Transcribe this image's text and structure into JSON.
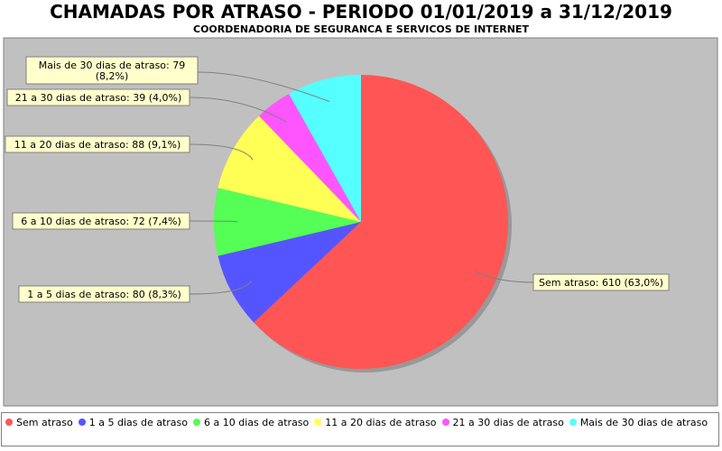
{
  "chart_data": {
    "type": "pie",
    "title": "CHAMADAS POR ATRASO - PERIODO 01/01/2019 a 31/12/2019",
    "subtitle": "COORDENADORIA DE SEGURANCA E SERVICOS DE INTERNET",
    "slices": [
      {
        "name": "Sem atraso",
        "value": 610,
        "label": "Sem atraso: 610 (63,0%)",
        "color": "#ff5555"
      },
      {
        "name": "1 a 5 dias de atraso",
        "value": 80,
        "label": "1 a 5 dias de atraso: 80 (8,3%)",
        "color": "#5555ff"
      },
      {
        "name": "6 a 10 dias de atraso",
        "value": 72,
        "label": "6 a 10 dias de atraso: 72 (7,4%)",
        "color": "#55ff55"
      },
      {
        "name": "11 a 20 dias de atraso",
        "value": 88,
        "label": "11 a 20 dias de atraso: 88 (9,1%)",
        "color": "#ffff55"
      },
      {
        "name": "21 a 30 dias de atraso",
        "value": 39,
        "label": "21 a 30 dias de atraso: 39 (4,0%)",
        "color": "#ff55ff"
      },
      {
        "name": "Mais de 30 dias de atraso",
        "value": 79,
        "label_lines": [
          "Mais de 30 dias de atraso: 79",
          "(8,2%)"
        ],
        "color": "#55ffff"
      }
    ],
    "legend_position": "bottom",
    "plot_background": "#c0c0c0"
  }
}
